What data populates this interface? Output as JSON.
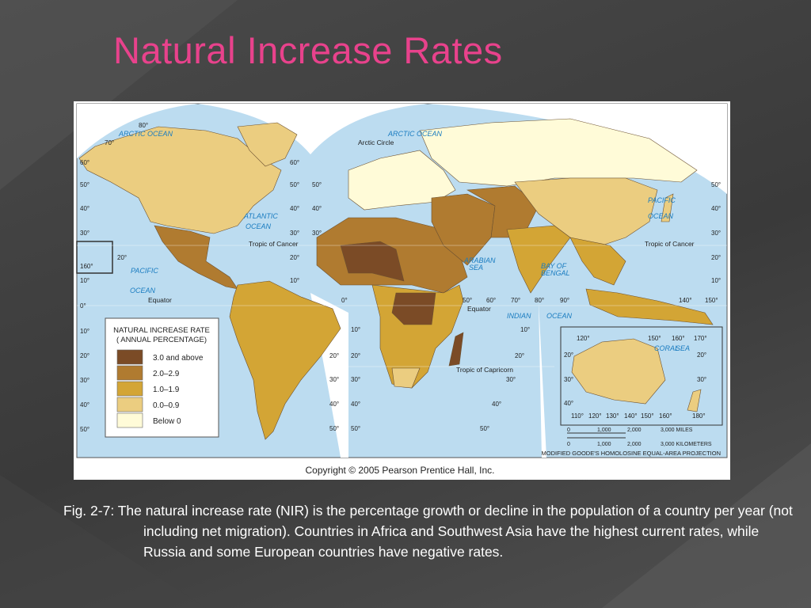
{
  "slide": {
    "title": "Natural Increase Rates",
    "caption": "Fig. 2-7: The natural increase rate (NIR) is the percentage growth or decline in the population of a country per year (not including net migration). Countries in Africa and Southwest Asia have the highest current rates, while Russia and some European countries have negative rates."
  },
  "map": {
    "legend": {
      "title": "NATURAL INCREASE RATE",
      "subtitle": "( ANNUAL PERCENTAGE)",
      "items": [
        {
          "label": "3.0 and above",
          "color": "#7b4b26"
        },
        {
          "label": "2.0–2.9",
          "color": "#b07b30"
        },
        {
          "label": "1.0–1.9",
          "color": "#d3a535"
        },
        {
          "label": "0.0–0.9",
          "color": "#ebcd80"
        },
        {
          "label": "Below 0",
          "color": "#fffbd8"
        }
      ]
    },
    "copyright": "Copyright © 2005 Pearson Prentice Hall, Inc.",
    "projection": "MODIFIED GOODE'S HOMOLOSINE EQUAL-AREA PROJECTION",
    "scale": {
      "miles": [
        "0",
        "1,000",
        "2,000",
        "3,000 MILES"
      ],
      "km": [
        "0",
        "1,000",
        "2,000",
        "3,000 KILOMETERS"
      ]
    },
    "labels": [
      "ARCTIC OCEAN",
      "ARCTIC OCEAN",
      "ATLANTIC",
      "OCEAN",
      "PACIFIC",
      "OCEAN",
      "PACIFIC",
      "OCEAN",
      "INDIAN",
      "OCEAN",
      "ARABIAN",
      "SEA",
      "BAY OF",
      "BENGAL",
      "CORAL",
      "SEA",
      "Arctic Circle",
      "Tropic of Cancer",
      "Tropic of Cancer",
      "Equator",
      "Equator",
      "Tropic of Capricorn"
    ],
    "graticule": [
      "80°",
      "70°",
      "60°",
      "50°",
      "40°",
      "30°",
      "20°",
      "160°",
      "10°",
      "0°",
      "10°",
      "20°",
      "30°",
      "40°",
      "50°",
      "60°",
      "50°",
      "40°",
      "30°",
      "20°",
      "10°",
      "50°",
      "40°",
      "30°",
      "50°",
      "40°",
      "30°",
      "20°",
      "10°",
      "0°",
      "50°",
      "60°",
      "70°",
      "80°",
      "90°",
      "140°",
      "150°",
      "10°",
      "20°",
      "30°",
      "40°",
      "50°",
      "10°",
      "20°",
      "30°",
      "40°",
      "50°",
      "20°",
      "30°",
      "40°",
      "50°",
      "120°",
      "150°",
      "160°",
      "170°",
      "20°",
      "20°",
      "30°",
      "30°",
      "40°",
      "110°",
      "120°",
      "130°",
      "140°",
      "150°",
      "160°",
      "180°"
    ]
  }
}
